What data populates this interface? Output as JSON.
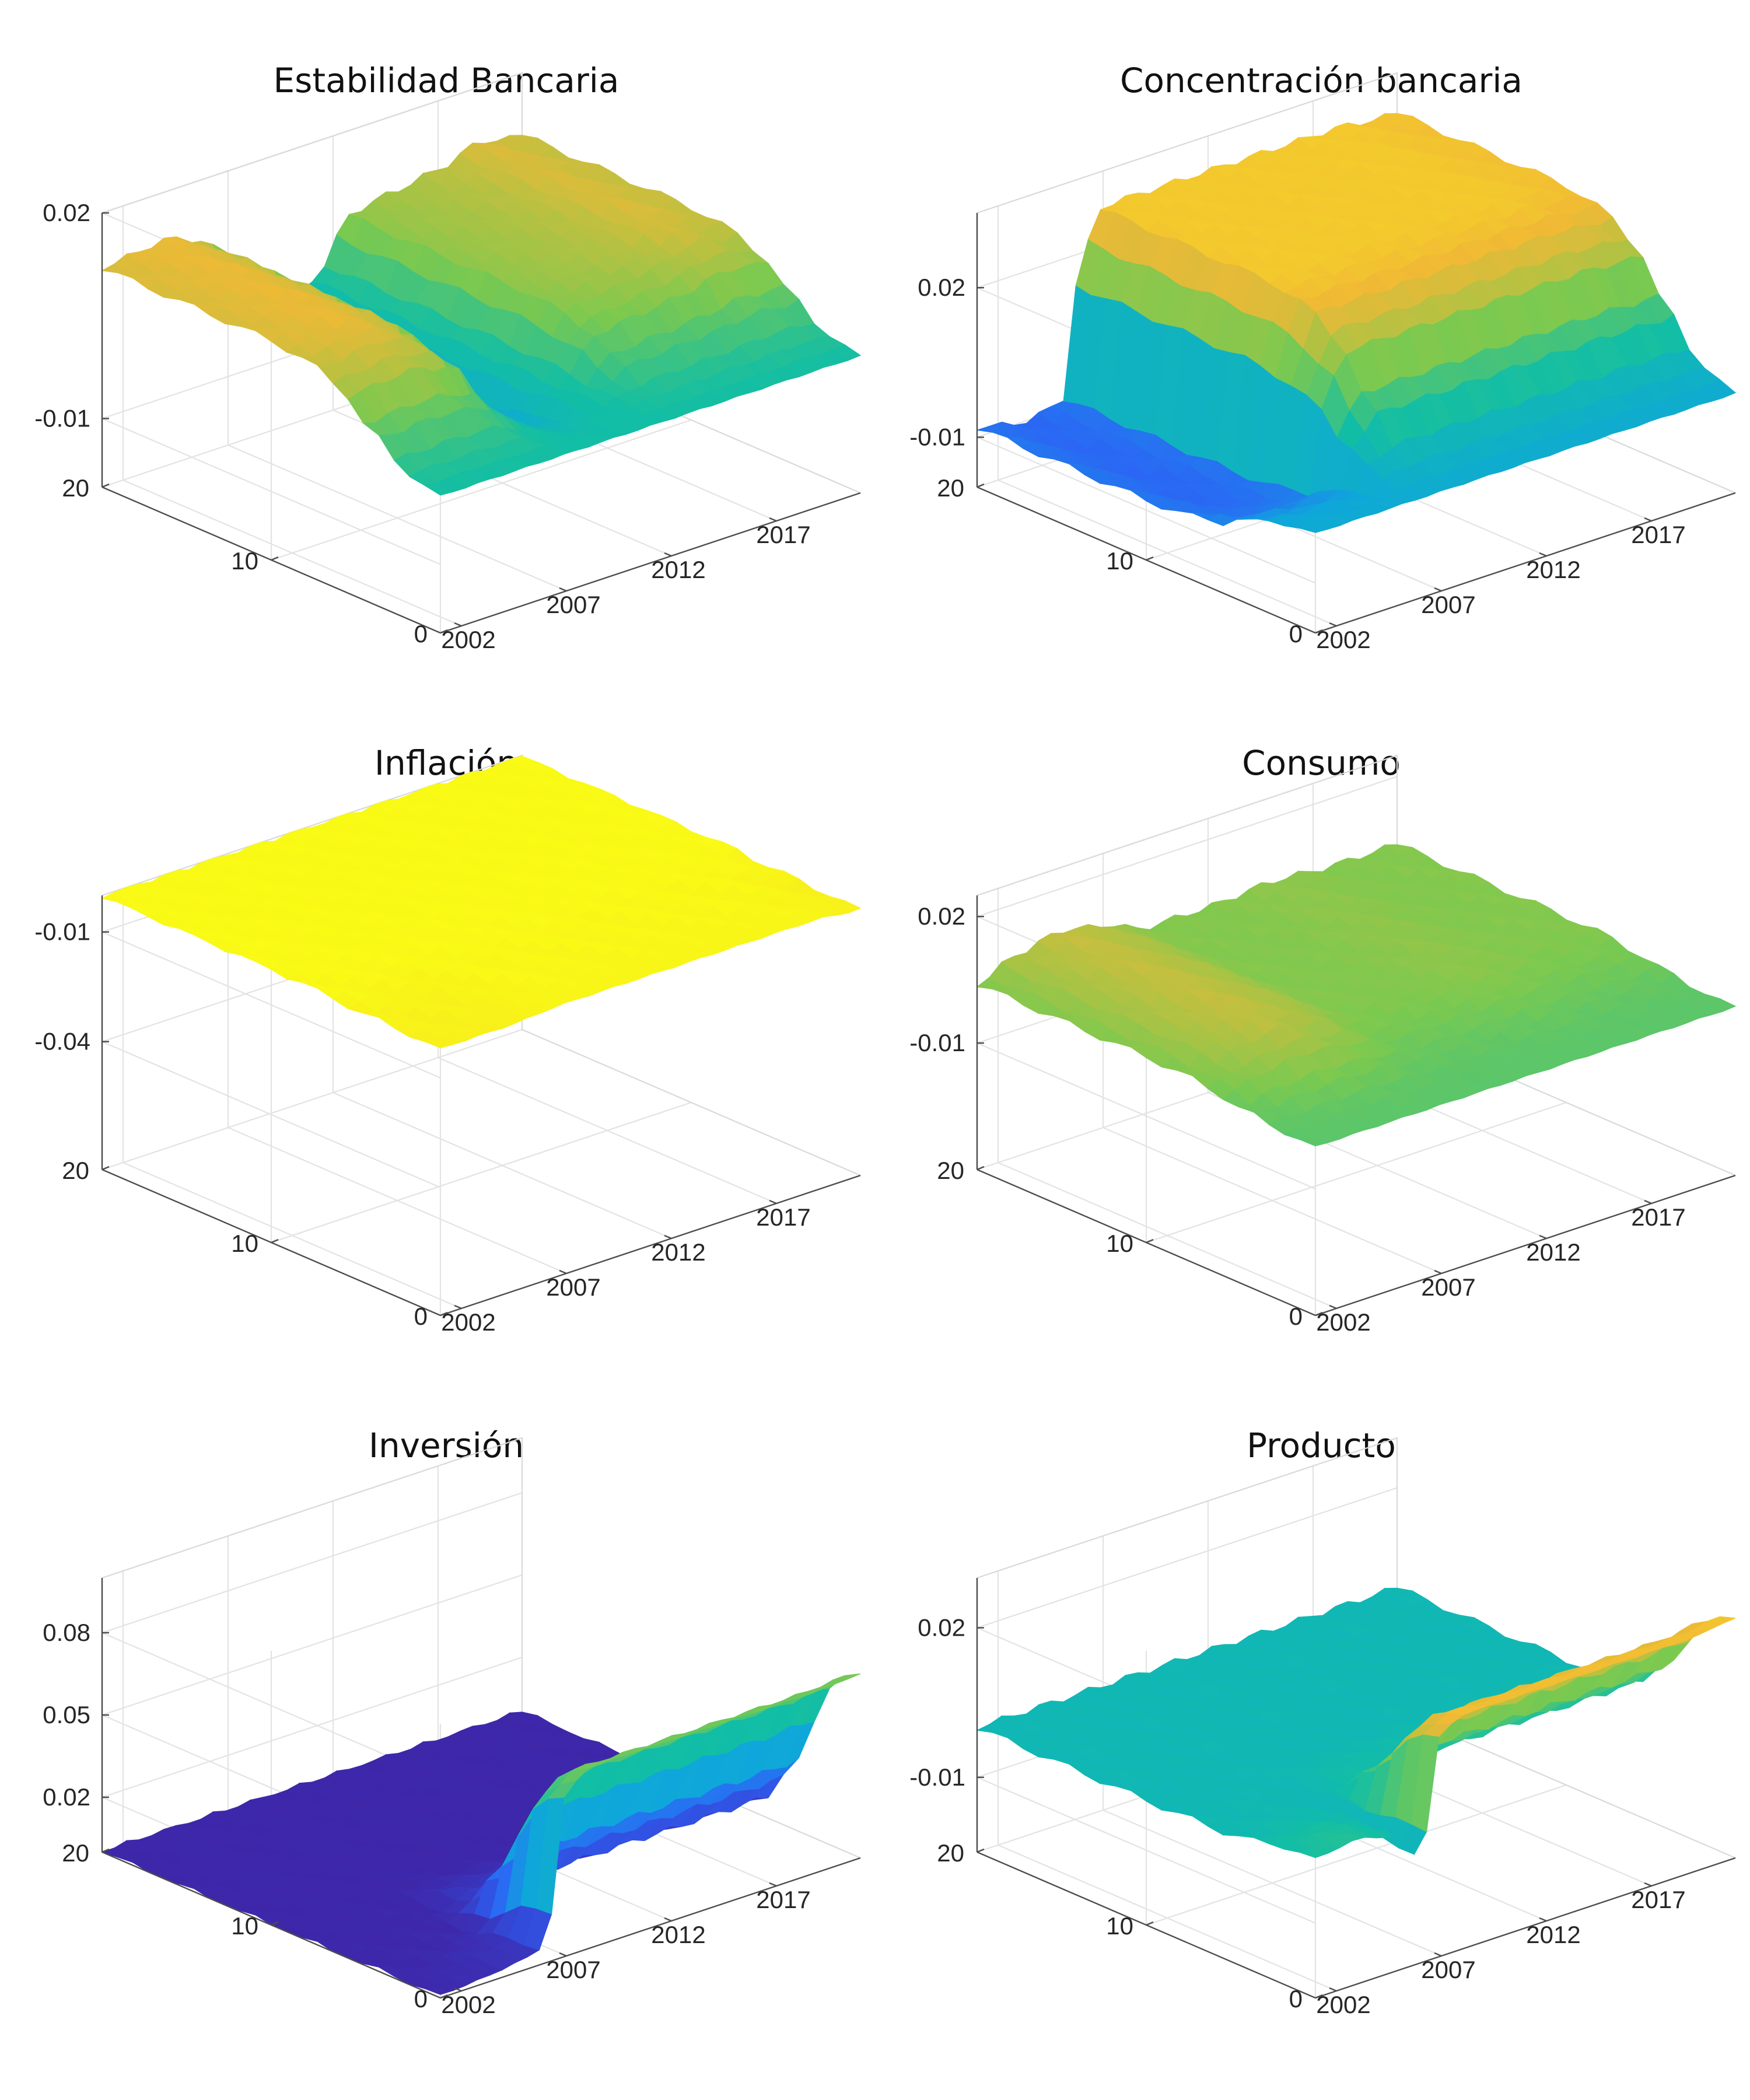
{
  "chart_data": [
    {
      "type": "surface",
      "title": "Estabilidad Bancaria",
      "x_ticks": [
        "2002",
        "2007",
        "2012",
        "2017"
      ],
      "y_ticks": [
        "0",
        "10",
        "20"
      ],
      "z_ticks": [
        "-0.01",
        "0.02"
      ],
      "xlim": [
        2001,
        2021
      ],
      "ylim": [
        0,
        20
      ],
      "zlim": [
        -0.02,
        0.02
      ],
      "colormap": [
        "#3e26a8",
        "#2d61f7",
        "#0fa6dc",
        "#12bea5",
        "#7cc94f",
        "#f1b935",
        "#f9fb15"
      ],
      "profile_by_year": {
        "x": [
          2001,
          2004,
          2006,
          2007,
          2008,
          2009,
          2011,
          2013,
          2015,
          2017,
          2019,
          2020.5
        ],
        "z_peak": [
          0.012,
          0.013,
          0.011,
          0.004,
          -0.003,
          -0.007,
          0.0,
          0.008,
          0.009,
          0.01,
          0.012,
          0.011
        ]
      },
      "profile_by_horizon": {
        "y": [
          0,
          2,
          4,
          6,
          8,
          10,
          14,
          20
        ],
        "weight": [
          0,
          0.1,
          0.4,
          0.8,
          0.95,
          1,
          1,
          1
        ]
      }
    },
    {
      "type": "surface",
      "title": "Concentración bancaria",
      "x_ticks": [
        "2002",
        "2007",
        "2012",
        "2017"
      ],
      "y_ticks": [
        "0",
        "10",
        "20"
      ],
      "z_ticks": [
        "-0.01",
        "0.02"
      ],
      "xlim": [
        2001,
        2021
      ],
      "ylim": [
        0,
        20
      ],
      "zlim": [
        -0.02,
        0.035
      ],
      "colormap": [
        "#3e26a8",
        "#2d61f7",
        "#0fa6dc",
        "#12bea5",
        "#7cc94f",
        "#f1b935",
        "#f9fb15"
      ],
      "profile_by_year": {
        "x": [
          2001,
          2003,
          2005,
          2006,
          2007,
          2008,
          2010,
          2014,
          2018,
          2020.5
        ],
        "z_peak": [
          -0.008,
          -0.01,
          -0.009,
          0.02,
          0.028,
          0.028,
          0.028,
          0.028,
          0.028,
          0.027
        ]
      },
      "profile_by_horizon": {
        "y": [
          0,
          2,
          4,
          6,
          8,
          10,
          14,
          20
        ],
        "weight": [
          0,
          0.1,
          0.4,
          0.8,
          0.95,
          1,
          1,
          1
        ]
      }
    },
    {
      "type": "surface",
      "title": "Inflación",
      "x_ticks": [
        "2002",
        "2007",
        "2012",
        "2017"
      ],
      "y_ticks": [
        "0",
        "10",
        "20"
      ],
      "z_ticks": [
        "-0.01",
        "-0.04"
      ],
      "xlim": [
        2001,
        2021
      ],
      "ylim": [
        0,
        20
      ],
      "zlim": [
        -0.075,
        0.0
      ],
      "colormap": [
        "#3e26a8",
        "#2d61f7",
        "#0fa6dc",
        "#12bea5",
        "#7cc94f",
        "#f1b935",
        "#f9fb15"
      ],
      "profile_by_year": {
        "x": [
          2001,
          2004,
          2007,
          2010,
          2013,
          2016,
          2019,
          2020.5
        ],
        "z_peak": [
          -0.002,
          -0.002,
          -0.001,
          -0.001,
          -0.001,
          -0.001,
          -0.001,
          -0.002
        ]
      },
      "profile_by_horizon": {
        "y": [
          0,
          2,
          4,
          6,
          8,
          10,
          14,
          20
        ],
        "weight": [
          1,
          0.95,
          0.8,
          0.5,
          0.2,
          0.05,
          0,
          0
        ]
      }
    },
    {
      "type": "surface",
      "title": "Consumo",
      "x_ticks": [
        "2002",
        "2007",
        "2012",
        "2017"
      ],
      "y_ticks": [
        "0",
        "10",
        "20"
      ],
      "z_ticks": [
        "0.02",
        "-0.01"
      ],
      "xlim": [
        2001,
        2021
      ],
      "ylim": [
        0,
        20
      ],
      "zlim": [
        -0.04,
        0.025
      ],
      "colormap": [
        "#3e26a8",
        "#2d61f7",
        "#0fa6dc",
        "#12bea5",
        "#7cc94f",
        "#f1b935",
        "#f9fb15"
      ],
      "profile_by_year": {
        "x": [
          2001,
          2003,
          2005,
          2007,
          2009,
          2012,
          2015,
          2018,
          2020.5
        ],
        "z_peak": [
          0.004,
          0.008,
          0.01,
          0.008,
          0.004,
          0.004,
          0.005,
          0.004,
          0.004
        ]
      },
      "profile_by_horizon": {
        "y": [
          0,
          2,
          4,
          6,
          8,
          10,
          14,
          20
        ],
        "weight": [
          0,
          0.05,
          0.3,
          0.7,
          0.95,
          1,
          1,
          1
        ]
      }
    },
    {
      "type": "surface",
      "title": "Inversión",
      "x_ticks": [
        "2002",
        "2007",
        "2012",
        "2017"
      ],
      "y_ticks": [
        "0",
        "10",
        "20"
      ],
      "z_ticks": [
        "0.08",
        "0.05",
        "0.02"
      ],
      "xlim": [
        2001,
        2021
      ],
      "ylim": [
        0,
        20
      ],
      "zlim": [
        0.0,
        0.1
      ],
      "colormap": [
        "#3e26a8",
        "#2d61f7",
        "#0fa6dc",
        "#12bea5",
        "#7cc94f",
        "#f1b935",
        "#f9fb15"
      ],
      "profile_by_year": {
        "x": [
          2001,
          2003,
          2005,
          2006,
          2007,
          2008,
          2011,
          2015,
          2019,
          2020.5
        ],
        "z_peak": [
          0.001,
          0.002,
          0.004,
          0.006,
          0.06,
          0.066,
          0.066,
          0.066,
          0.066,
          0.067
        ]
      },
      "profile_by_horizon": {
        "y": [
          0,
          1,
          2,
          3,
          4,
          6,
          10,
          20
        ],
        "weight": [
          1,
          0.95,
          0.85,
          0.6,
          0.3,
          0.08,
          0,
          0
        ]
      }
    },
    {
      "type": "surface",
      "title": "Producto",
      "x_ticks": [
        "2002",
        "2007",
        "2012",
        "2017"
      ],
      "y_ticks": [
        "0",
        "10",
        "20"
      ],
      "z_ticks": [
        "0.02",
        "-0.01"
      ],
      "xlim": [
        2001,
        2021
      ],
      "ylim": [
        0,
        20
      ],
      "zlim": [
        -0.025,
        0.03
      ],
      "colormap": [
        "#3e26a8",
        "#2d61f7",
        "#0fa6dc",
        "#12bea5",
        "#7cc94f",
        "#f1b935",
        "#f9fb15"
      ],
      "profile_by_year": {
        "x": [
          2001,
          2003,
          2005,
          2006,
          2007,
          2008,
          2011,
          2015,
          2019,
          2020.5
        ],
        "z_peak": [
          0.003,
          0.004,
          0.002,
          -0.004,
          0.02,
          0.022,
          0.022,
          0.022,
          0.022,
          0.023
        ]
      },
      "profile_by_horizon": {
        "y": [
          0,
          1,
          2,
          3,
          4,
          6,
          10,
          20
        ],
        "weight": [
          1,
          0.95,
          0.85,
          0.6,
          0.3,
          0.08,
          0,
          0
        ]
      }
    }
  ]
}
